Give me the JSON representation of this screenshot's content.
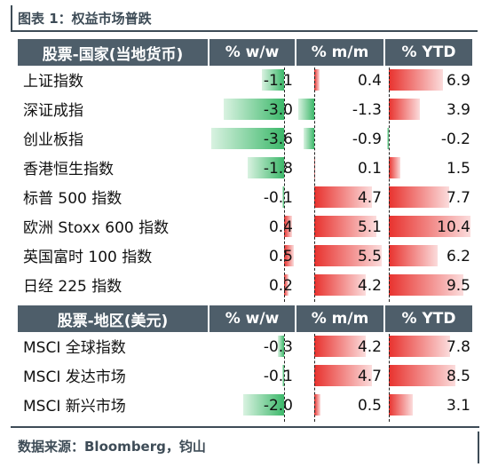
{
  "title": "图表 1：权益市场普跌",
  "source": "数据来源：Bloomberg，钧山",
  "columns": {
    "wow": "% w/w",
    "mom": "% m/m",
    "ytd": "% YTD"
  },
  "sections": [
    {
      "header": "股票-国家(当地货币)",
      "rows": [
        {
          "name": "上证指数",
          "wow": -1.1,
          "mom": 0.4,
          "ytd": 6.9
        },
        {
          "name": "深证成指",
          "wow": -3.0,
          "mom": -1.3,
          "ytd": 3.9
        },
        {
          "name": "创业板指",
          "wow": -3.6,
          "mom": -0.9,
          "ytd": -0.2
        },
        {
          "name": "香港恒生指数",
          "wow": -1.8,
          "mom": 0.1,
          "ytd": 1.5
        },
        {
          "name": "标普 500 指数",
          "wow": -0.1,
          "mom": 4.7,
          "ytd": 7.7
        },
        {
          "name": "欧洲 Stoxx 600 指数",
          "wow": 0.4,
          "mom": 5.1,
          "ytd": 10.4
        },
        {
          "name": "英国富时 100 指数",
          "wow": 0.5,
          "mom": 5.5,
          "ytd": 6.2
        },
        {
          "name": "日经 225 指数",
          "wow": 0.2,
          "mom": 4.2,
          "ytd": 9.5
        }
      ]
    },
    {
      "header": "股票-地区(美元)",
      "rows": [
        {
          "name": "MSCI 全球指数",
          "wow": -0.3,
          "mom": 4.2,
          "ytd": 7.8
        },
        {
          "name": "MSCI 发达市场",
          "wow": -0.1,
          "mom": 4.7,
          "ytd": 8.5
        },
        {
          "name": "MSCI 新兴市场",
          "wow": -2.0,
          "mom": 0.5,
          "ytd": 3.1
        }
      ]
    }
  ],
  "colors": {
    "positive": "#e8322e",
    "negative": "#3cb86a",
    "header_bg": "#4e5e6a"
  },
  "chart_data": {
    "type": "table",
    "title": "图表 1：权益市场普跌",
    "columns": [
      "% w/w",
      "% m/m",
      "% YTD"
    ],
    "rows": [
      {
        "name": "上证指数",
        "values": [
          -1.1,
          0.4,
          6.9
        ]
      },
      {
        "name": "深证成指",
        "values": [
          -3.0,
          -1.3,
          3.9
        ]
      },
      {
        "name": "创业板指",
        "values": [
          -3.6,
          -0.9,
          -0.2
        ]
      },
      {
        "name": "香港恒生指数",
        "values": [
          -1.8,
          0.1,
          1.5
        ]
      },
      {
        "name": "标普 500 指数",
        "values": [
          -0.1,
          4.7,
          7.7
        ]
      },
      {
        "name": "欧洲 Stoxx 600 指数",
        "values": [
          0.4,
          5.1,
          10.4
        ]
      },
      {
        "name": "英国富时 100 指数",
        "values": [
          0.5,
          5.5,
          6.2
        ]
      },
      {
        "name": "日经 225 指数",
        "values": [
          0.2,
          4.2,
          9.5
        ]
      },
      {
        "name": "MSCI 全球指数",
        "values": [
          -0.3,
          4.2,
          7.8
        ]
      },
      {
        "name": "MSCI 发达市场",
        "values": [
          -0.1,
          4.7,
          8.5
        ]
      },
      {
        "name": "MSCI 新兴市场",
        "values": [
          -2.0,
          0.5,
          3.1
        ]
      }
    ]
  }
}
